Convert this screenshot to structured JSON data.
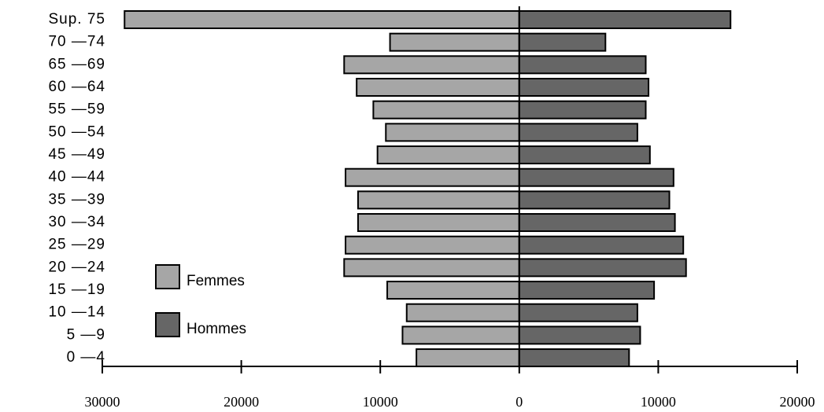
{
  "chart_data": {
    "type": "pyramid",
    "categories": [
      "Sup. 75",
      "70 —74",
      "65 —69",
      "60 —64",
      "55 —59",
      "50 —54",
      "45 —49",
      "40 —44",
      "35 —39",
      "30 —34",
      "25 —29",
      "20 —24",
      "15 —19",
      "10 —14",
      "5 —9",
      "0 —4"
    ],
    "series": [
      {
        "name": "Femmes",
        "color": "#a6a6a6",
        "values": [
          28400,
          9300,
          12600,
          11700,
          10500,
          9600,
          10200,
          12500,
          11600,
          11600,
          12500,
          12600,
          9500,
          8100,
          8400,
          7400
        ]
      },
      {
        "name": "Hommes",
        "color": "#666666",
        "values": [
          15200,
          6200,
          9100,
          9300,
          9100,
          8500,
          9400,
          11100,
          10800,
          11200,
          11800,
          12000,
          9700,
          8500,
          8700,
          7900
        ]
      }
    ],
    "xlim": [
      -30000,
      20000
    ],
    "xticks": [
      {
        "value": -30000,
        "label": "30000"
      },
      {
        "value": -20000,
        "label": "20000"
      },
      {
        "value": -10000,
        "label": "10000"
      },
      0,
      10000,
      20000
    ]
  }
}
